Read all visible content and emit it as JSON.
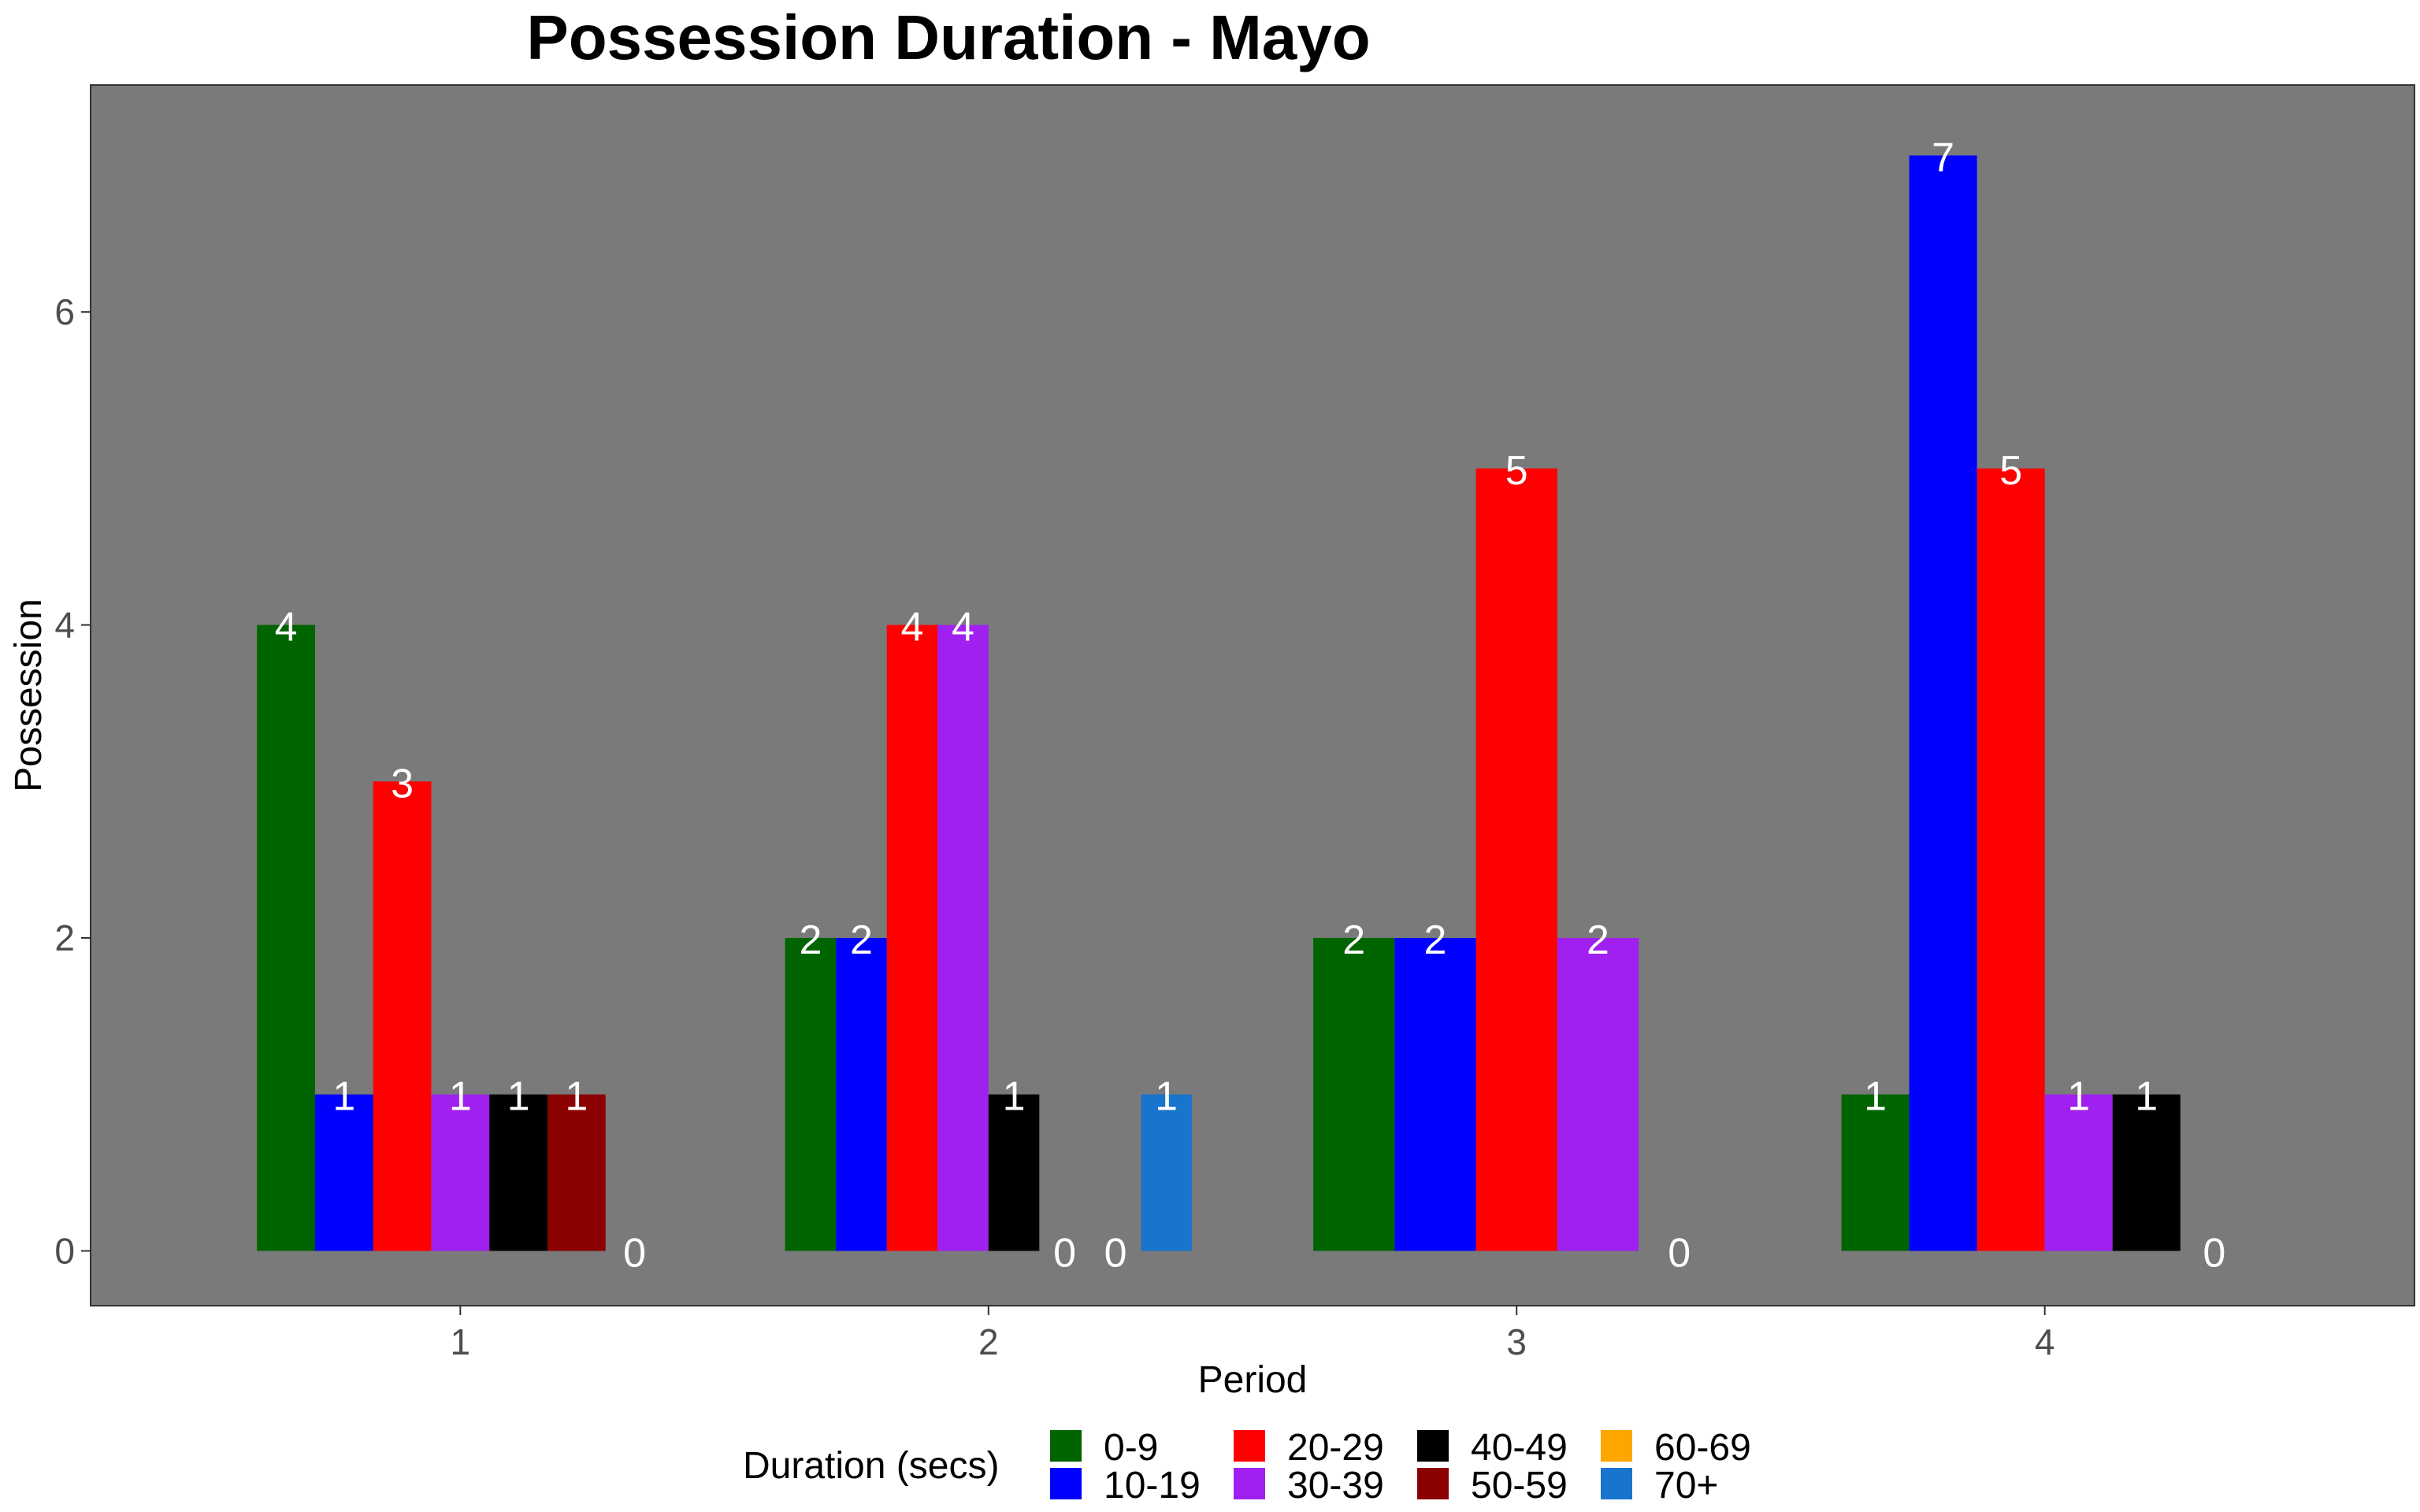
{
  "chart_data": {
    "type": "bar",
    "title": "Possession Duration - Mayo",
    "xlabel": "Period",
    "ylabel": "Possession",
    "categories": [
      "1",
      "2",
      "3",
      "4"
    ],
    "ylim": [
      -0.35,
      7.45
    ],
    "yticks": [
      0,
      2,
      4,
      6
    ],
    "grid": false,
    "legend_position": "bottom",
    "legend_title": "Duration (secs)",
    "series": [
      {
        "name": "0-9",
        "color": "#006400"
      },
      {
        "name": "10-19",
        "color": "#0000ff"
      },
      {
        "name": "20-29",
        "color": "#ff0000"
      },
      {
        "name": "30-39",
        "color": "#a020f0"
      },
      {
        "name": "40-49",
        "color": "#000000"
      },
      {
        "name": "50-59",
        "color": "#8b0000"
      },
      {
        "name": "60-69",
        "color": "#ffa500"
      },
      {
        "name": "70+",
        "color": "#1874cd"
      }
    ],
    "bars": [
      {
        "period": "1",
        "series": "0-9",
        "value": 4
      },
      {
        "period": "1",
        "series": "10-19",
        "value": 1
      },
      {
        "period": "1",
        "series": "20-29",
        "value": 3
      },
      {
        "period": "1",
        "series": "30-39",
        "value": 1
      },
      {
        "period": "1",
        "series": "40-49",
        "value": 1
      },
      {
        "period": "1",
        "series": "50-59",
        "value": 1
      },
      {
        "period": "1",
        "series": "70+",
        "value": 0
      },
      {
        "period": "2",
        "series": "0-9",
        "value": 2
      },
      {
        "period": "2",
        "series": "10-19",
        "value": 2
      },
      {
        "period": "2",
        "series": "20-29",
        "value": 4
      },
      {
        "period": "2",
        "series": "30-39",
        "value": 4
      },
      {
        "period": "2",
        "series": "40-49",
        "value": 1
      },
      {
        "period": "2",
        "series": "50-59",
        "value": 0
      },
      {
        "period": "2",
        "series": "60-69",
        "value": 0
      },
      {
        "period": "2",
        "series": "70+",
        "value": 1
      },
      {
        "period": "3",
        "series": "0-9",
        "value": 2
      },
      {
        "period": "3",
        "series": "10-19",
        "value": 2
      },
      {
        "period": "3",
        "series": "20-29",
        "value": 5
      },
      {
        "period": "3",
        "series": "30-39",
        "value": 2
      },
      {
        "period": "3",
        "series": "70+",
        "value": 0
      },
      {
        "period": "4",
        "series": "0-9",
        "value": 1
      },
      {
        "period": "4",
        "series": "10-19",
        "value": 7
      },
      {
        "period": "4",
        "series": "20-29",
        "value": 5
      },
      {
        "period": "4",
        "series": "30-39",
        "value": 1
      },
      {
        "period": "4",
        "series": "40-49",
        "value": 1
      },
      {
        "period": "4",
        "series": "70+",
        "value": 0
      }
    ],
    "colors": {
      "panel_background": "#7a7a7a",
      "page_background": "#ffffff",
      "data_label": "#ffffff"
    }
  }
}
